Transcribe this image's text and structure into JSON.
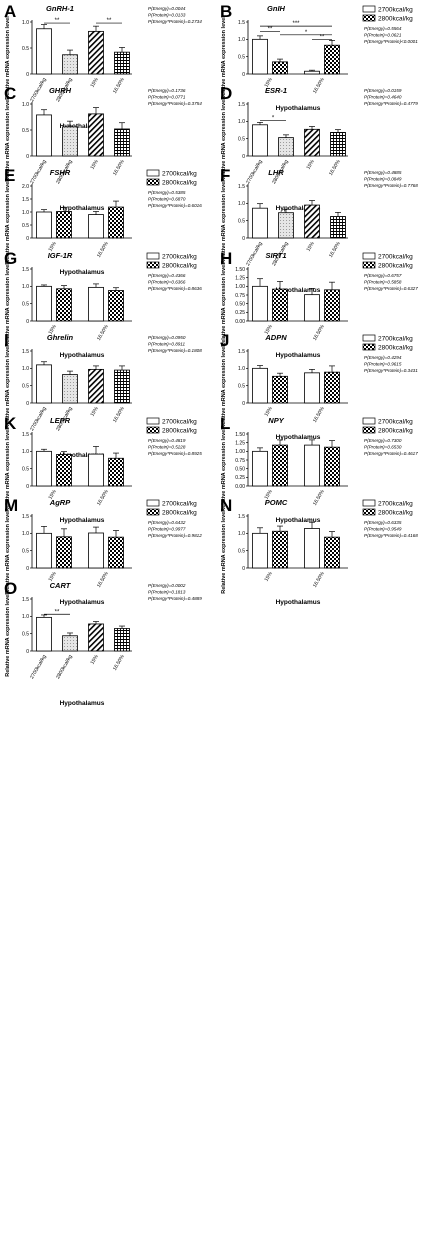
{
  "figure": {
    "colors": {
      "bar_stroke": "#000000",
      "dotted_fill": "#d9d9d9",
      "text": "#000000"
    },
    "ylabel": "Relative mRNA expression level",
    "xlabel": "Hypothalamus",
    "legend_labels": [
      "2700kcal/kg",
      "2800kcal/kg"
    ]
  },
  "chart_data": [
    {
      "panel": "A",
      "type": "bar",
      "title": "GnRH-1",
      "layout": "four",
      "categories": [
        "2700kcal/kg",
        "2800kcal/kg",
        "15%",
        "16.50%"
      ],
      "values": [
        0.87,
        0.37,
        0.82,
        0.42
      ],
      "errors": [
        0.08,
        0.09,
        0.1,
        0.09
      ],
      "ylim": [
        0,
        1.0
      ],
      "yticks": [
        0,
        0.5,
        1.0
      ],
      "stats": [
        "P(Energy)=0.0044",
        "P(Protein)=0.0133",
        "P(Energy*Protein)=0.2734"
      ],
      "brackets": [
        {
          "from": 0,
          "to": 1,
          "y": 0.98,
          "label": "**"
        },
        {
          "from": 2,
          "to": 3,
          "y": 0.98,
          "label": "**"
        }
      ]
    },
    {
      "panel": "B",
      "type": "bar",
      "title": "GnIH",
      "layout": "two",
      "categories": [
        "15%",
        "16.50%"
      ],
      "series": [
        {
          "name": "2700kcal/kg",
          "values": [
            1.0,
            0.08
          ],
          "errors": [
            0.1,
            0.03
          ]
        },
        {
          "name": "2800kcal/kg",
          "values": [
            0.35,
            0.83
          ],
          "errors": [
            0.08,
            0.14
          ]
        }
      ],
      "ylim": [
        0,
        1.5
      ],
      "yticks": [
        0.0,
        0.5,
        1.0,
        1.5
      ],
      "stats": [
        "P(Energy)=0.5564",
        "P(Protein)=0.0621",
        "P(Energy*Protein)<0.0001"
      ],
      "brackets": [
        {
          "from": 0,
          "to": 3,
          "y": 1.38,
          "label": "***"
        },
        {
          "from": 0,
          "to": 1,
          "y": 1.22,
          "label": "**"
        },
        {
          "from": 1,
          "to": 3,
          "y": 1.13,
          "label": "*"
        },
        {
          "from": 2,
          "to": 3,
          "y": 1.0,
          "label": "**"
        }
      ]
    },
    {
      "panel": "C",
      "type": "bar",
      "title": "GHRH",
      "layout": "four",
      "categories": [
        "2700kcal/kg",
        "2800kcal/kg",
        "15%",
        "16.50%"
      ],
      "values": [
        0.79,
        0.56,
        0.81,
        0.52
      ],
      "errors": [
        0.1,
        0.11,
        0.12,
        0.12
      ],
      "ylim": [
        0,
        1.0
      ],
      "yticks": [
        0,
        0.5,
        1.0
      ],
      "stats": [
        "P(Energy)=0.1736",
        "P(Protein)=0.0771",
        "P(Energy*Protein)=0.3754"
      ],
      "brackets": []
    },
    {
      "panel": "D",
      "type": "bar",
      "title": "ESR-1",
      "layout": "four",
      "categories": [
        "2700kcal/kg",
        "2800kcal/kg",
        "15%",
        "16.50%"
      ],
      "values": [
        0.9,
        0.53,
        0.77,
        0.68
      ],
      "errors": [
        0.07,
        0.08,
        0.08,
        0.08
      ],
      "ylim": [
        0,
        1.5
      ],
      "yticks": [
        0.0,
        0.5,
        1.0,
        1.5
      ],
      "stats": [
        "P(Energy)=0.0159",
        "P(Protein)=0.4640",
        "P(Energy*Protein)=0.4779"
      ],
      "brackets": [
        {
          "from": 0,
          "to": 1,
          "y": 1.03,
          "label": "*"
        }
      ]
    },
    {
      "panel": "E",
      "type": "bar",
      "title": "FSHR",
      "layout": "two",
      "categories": [
        "15%",
        "16.50%"
      ],
      "series": [
        {
          "name": "2700kcal/kg",
          "values": [
            1.0,
            0.9
          ],
          "errors": [
            0.09,
            0.12
          ]
        },
        {
          "name": "2800kcal/kg",
          "values": [
            1.02,
            1.19
          ],
          "errors": [
            0.15,
            0.23
          ]
        }
      ],
      "ylim": [
        0,
        2.0
      ],
      "yticks": [
        0.0,
        0.5,
        1.0,
        1.5,
        2.0
      ],
      "stats": [
        "P(Energy)=0.5385",
        "P(Protein)=0.6870",
        "P(Energy*Protein)=0.6016"
      ],
      "brackets": []
    },
    {
      "panel": "F",
      "type": "bar",
      "title": "LHR",
      "layout": "four",
      "categories": [
        "2700kcal/kg",
        "2800kcal/kg",
        "15%",
        "16.50%"
      ],
      "values": [
        0.86,
        0.73,
        0.95,
        0.62
      ],
      "errors": [
        0.13,
        0.1,
        0.13,
        0.12
      ],
      "ylim": [
        0,
        1.5
      ],
      "yticks": [
        0.0,
        0.5,
        1.0,
        1.5
      ],
      "stats": [
        "P(Energy)=0.4885",
        "P(Protein)=0.0849",
        "P(Energy*Protein)=0.7768"
      ],
      "brackets": []
    },
    {
      "panel": "G",
      "type": "bar",
      "title": "IGF-1R",
      "layout": "two",
      "categories": [
        "15%",
        "16.50%"
      ],
      "series": [
        {
          "name": "2700kcal/kg",
          "values": [
            1.0,
            0.97
          ],
          "errors": [
            0.04,
            0.1
          ]
        },
        {
          "name": "2800kcal/kg",
          "values": [
            0.93,
            0.88
          ],
          "errors": [
            0.09,
            0.08
          ]
        }
      ],
      "ylim": [
        0,
        1.5
      ],
      "yticks": [
        0.0,
        0.5,
        1.0,
        1.5
      ],
      "stats": [
        "P(Energy)=0.4366",
        "P(Protein)=0.6366",
        "P(Energy*Protein)=0.8636"
      ],
      "brackets": []
    },
    {
      "panel": "H",
      "type": "bar",
      "title": "SIRT1",
      "layout": "two",
      "categories": [
        "15%",
        "16.50%"
      ],
      "series": [
        {
          "name": "2700kcal/kg",
          "values": [
            1.0,
            0.76
          ],
          "errors": [
            0.22,
            0.18
          ]
        },
        {
          "name": "2800kcal/kg",
          "values": [
            0.92,
            0.9
          ],
          "errors": [
            0.22,
            0.22
          ]
        }
      ],
      "ylim": [
        0,
        1.5
      ],
      "yticks": [
        0.0,
        0.25,
        0.5,
        0.75,
        1.0,
        1.25,
        1.5
      ],
      "stats": [
        "P(Energy)=0.6757",
        "P(Protein)=0.5858",
        "P(Energy*Protein)=0.6327"
      ],
      "brackets": []
    },
    {
      "panel": "I",
      "type": "bar",
      "title": "Ghrelin",
      "layout": "four",
      "categories": [
        "2700kcal/kg",
        "2800kcal/kg",
        "15%",
        "16.50%"
      ],
      "values": [
        1.1,
        0.82,
        0.97,
        0.95
      ],
      "errors": [
        0.09,
        0.1,
        0.1,
        0.12
      ],
      "ylim": [
        0,
        1.5
      ],
      "yticks": [
        0.0,
        0.5,
        1.0,
        1.5
      ],
      "stats": [
        "P(Energy)=0.0950",
        "P(Protein)=0.8911",
        "P(Energy*Protein)=0.1808"
      ],
      "brackets": []
    },
    {
      "panel": "J",
      "type": "bar",
      "title": "ADPN",
      "layout": "two",
      "categories": [
        "15%",
        "16.50%"
      ],
      "series": [
        {
          "name": "2700kcal/kg",
          "values": [
            1.0,
            0.87
          ],
          "errors": [
            0.08,
            0.1
          ]
        },
        {
          "name": "2800kcal/kg",
          "values": [
            0.77,
            0.89
          ],
          "errors": [
            0.09,
            0.18
          ]
        }
      ],
      "ylim": [
        0,
        1.5
      ],
      "yticks": [
        0.0,
        0.5,
        1.0,
        1.5
      ],
      "stats": [
        "P(Energy)=0.4294",
        "P(Protein)=0.9615",
        "P(Energy*Protein)=0.3431"
      ],
      "brackets": []
    },
    {
      "panel": "K",
      "type": "bar",
      "title": "LEPR",
      "layout": "two",
      "categories": [
        "15%",
        "16.50%"
      ],
      "series": [
        {
          "name": "2700kcal/kg",
          "values": [
            1.0,
            0.92
          ],
          "errors": [
            0.06,
            0.22
          ]
        },
        {
          "name": "2800kcal/kg",
          "values": [
            0.91,
            0.8
          ],
          "errors": [
            0.08,
            0.15
          ]
        }
      ],
      "ylim": [
        0,
        1.5
      ],
      "yticks": [
        0.0,
        0.5,
        1.0,
        1.5
      ],
      "stats": [
        "P(Energy)=0.4819",
        "P(Protein)=0.5228",
        "P(Energy*Protein)=0.8925"
      ],
      "brackets": []
    },
    {
      "panel": "L",
      "type": "bar",
      "title": "NPY",
      "layout": "two",
      "categories": [
        "15%",
        "16.50%"
      ],
      "series": [
        {
          "name": "2700kcal/kg",
          "values": [
            1.0,
            1.18
          ],
          "errors": [
            0.1,
            0.15
          ]
        },
        {
          "name": "2800kcal/kg",
          "values": [
            1.18,
            1.12
          ],
          "errors": [
            0.15,
            0.19
          ]
        }
      ],
      "ylim": [
        0,
        1.5
      ],
      "yticks": [
        0.0,
        0.25,
        0.5,
        0.75,
        1.0,
        1.25,
        1.5
      ],
      "stats": [
        "P(Energy)=0.7300",
        "P(Protein)=0.6530",
        "P(Energy*Protein)=0.4617"
      ],
      "brackets": []
    },
    {
      "panel": "M",
      "type": "bar",
      "title": "AgRP",
      "layout": "two",
      "categories": [
        "15%",
        "16.50%"
      ],
      "series": [
        {
          "name": "2700kcal/kg",
          "values": [
            1.0,
            1.01
          ],
          "errors": [
            0.2,
            0.17
          ]
        },
        {
          "name": "2800kcal/kg",
          "values": [
            0.9,
            0.89
          ],
          "errors": [
            0.23,
            0.19
          ]
        }
      ],
      "ylim": [
        0,
        1.5
      ],
      "yticks": [
        0.0,
        0.5,
        1.0,
        1.5
      ],
      "stats": [
        "P(Energy)=0.6432",
        "P(Protein)=0.9977",
        "P(Energy*Protein)=0.9812"
      ],
      "brackets": []
    },
    {
      "panel": "N",
      "type": "bar",
      "title": "POMC",
      "layout": "two",
      "categories": [
        "15%",
        "16.50%"
      ],
      "series": [
        {
          "name": "2700kcal/kg",
          "values": [
            1.0,
            1.14
          ],
          "errors": [
            0.16,
            0.18
          ]
        },
        {
          "name": "2800kcal/kg",
          "values": [
            1.06,
            0.89
          ],
          "errors": [
            0.15,
            0.16
          ]
        }
      ],
      "ylim": [
        0,
        1.5
      ],
      "yticks": [
        0.0,
        0.5,
        1.0,
        1.5
      ],
      "stats": [
        "P(Energy)=0.6335",
        "P(Protein)=0.9549",
        "P(Energy*Protein)=0.4168"
      ],
      "brackets": []
    },
    {
      "panel": "O",
      "type": "bar",
      "title": "CART",
      "layout": "four",
      "categories": [
        "2700kcal/kg",
        "2800kcal/kg",
        "15%",
        "16.50%"
      ],
      "values": [
        0.97,
        0.44,
        0.78,
        0.65
      ],
      "errors": [
        0.07,
        0.08,
        0.07,
        0.07
      ],
      "ylim": [
        0,
        1.5
      ],
      "yticks": [
        0.0,
        0.5,
        1.0,
        1.5
      ],
      "stats": [
        "P(Energy)=0.0002",
        "P(Protein)=0.1813",
        "P(Energy*Protein)=0.4889"
      ],
      "brackets": [
        {
          "from": 0,
          "to": 1,
          "y": 1.06,
          "label": "**"
        }
      ]
    }
  ]
}
